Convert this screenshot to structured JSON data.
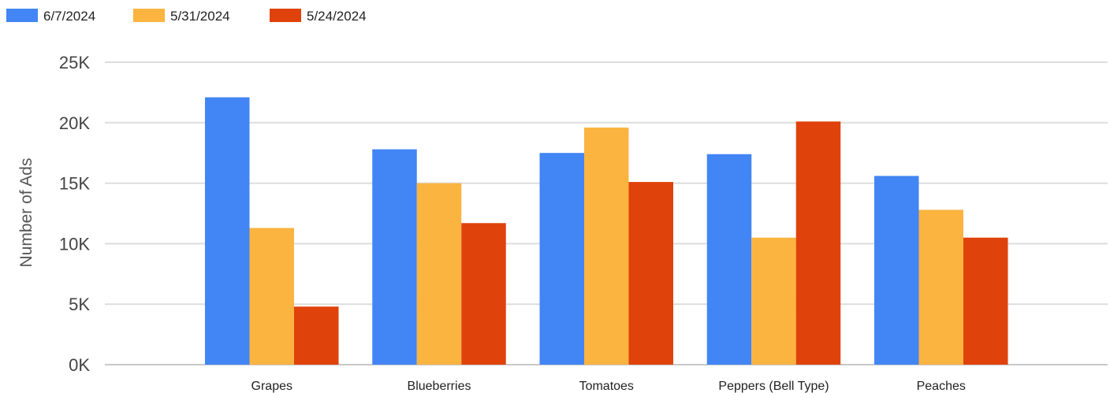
{
  "chart_data": {
    "type": "bar",
    "title": "",
    "xlabel": "",
    "ylabel": "Number of Ads",
    "categories": [
      "Grapes",
      "Blueberries",
      "Tomatoes",
      "Peppers (Bell Type)",
      "Peaches"
    ],
    "series": [
      {
        "name": "6/7/2024",
        "color": "#4285F4",
        "values": [
          22100,
          17800,
          17500,
          17400,
          15600
        ]
      },
      {
        "name": "5/31/2024",
        "color": "#FBB440",
        "values": [
          11300,
          15000,
          19600,
          10500,
          12800
        ]
      },
      {
        "name": "5/24/2024",
        "color": "#E0420B",
        "values": [
          4800,
          11700,
          15100,
          20100,
          10500
        ]
      }
    ],
    "ylim": [
      0,
      25000
    ],
    "yticks": [
      0,
      5000,
      10000,
      15000,
      20000,
      25000
    ],
    "ytick_labels": [
      "0K",
      "5K",
      "10K",
      "15K",
      "20K",
      "25K"
    ],
    "grid": true,
    "legend_position": "top-left"
  }
}
